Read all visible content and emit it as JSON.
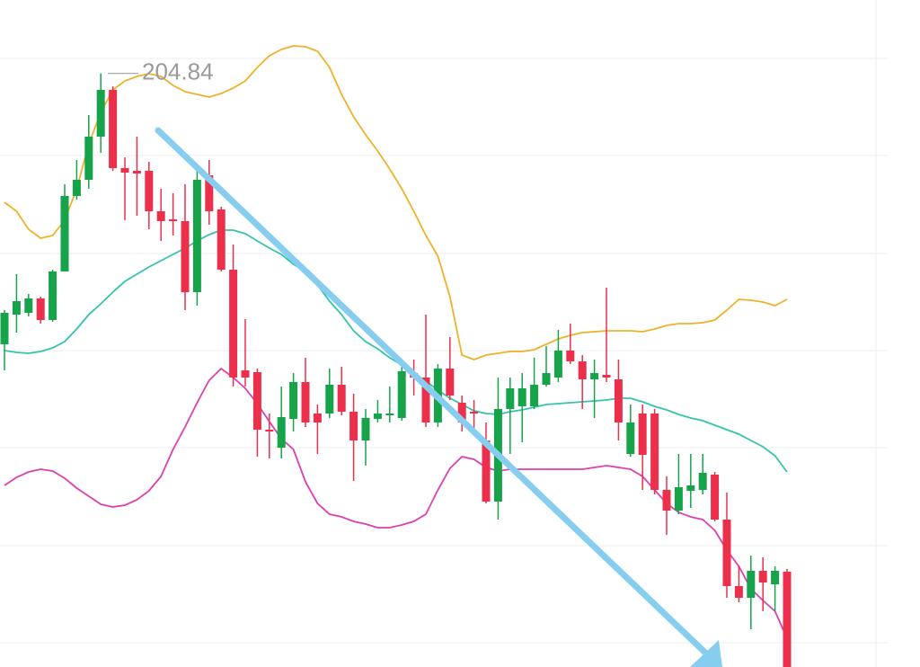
{
  "chart_data": {
    "type": "candlestick",
    "ylim": [
      138.8,
      213
    ],
    "up_color": "#16a34a",
    "down_color": "#ec2f4b",
    "open": [
      174.7,
      178.0,
      178.2,
      179.8,
      177.4,
      182.8,
      191.2,
      193.0,
      197.8,
      203.0,
      194.3,
      194.0,
      194.0,
      189.5,
      188.6,
      188.4,
      180.5,
      193.5,
      189.7,
      183.0,
      171.8,
      171.6,
      165.2,
      163.2,
      166.4,
      170.5,
      167.0,
      167.0,
      170.2,
      167.2,
      164.0,
      166.4,
      166.8,
      166.5,
      171.5,
      171.0,
      166.0,
      172.0,
      168.2,
      167.2,
      164.0,
      157.2,
      167.5,
      167.8,
      167.8,
      170.2,
      171.0,
      174.0,
      172.8,
      170.8,
      171.3,
      170.8,
      162.5,
      167.0,
      167.0,
      158.5,
      156.2,
      158.4,
      158.5,
      160.2,
      155.2,
      147.8,
      146.5,
      149.5,
      148.0,
      149.4
    ],
    "high": [
      178.5,
      182.5,
      180.3,
      180.0,
      183.0,
      192.5,
      195.2,
      200.2,
      204.84,
      203.4,
      195.5,
      197.8,
      195.0,
      192.0,
      191.5,
      192.5,
      194.0,
      195.2,
      190.0,
      185.8,
      177.5,
      172.0,
      167.0,
      170.0,
      171.5,
      173.2,
      168.0,
      172.0,
      172.2,
      169.2,
      167.5,
      168.5,
      170.0,
      173.0,
      173.0,
      178.0,
      172.5,
      175.5,
      169.0,
      168.5,
      166.0,
      171.0,
      171.0,
      171.5,
      173.2,
      174.5,
      176.3,
      177.0,
      173.5,
      173.0,
      181.0,
      173.0,
      168.0,
      168.0,
      167.5,
      160.0,
      162.5,
      162.5,
      162.5,
      160.5,
      158.2,
      150.0,
      151.2,
      151.0,
      150.0,
      149.7
    ],
    "low": [
      171.8,
      176.0,
      177.8,
      177.0,
      177.2,
      182.8,
      190.8,
      192.0,
      196.0,
      194.0,
      188.5,
      189.0,
      187.5,
      186.2,
      186.8,
      178.5,
      179.0,
      188.0,
      182.8,
      170.0,
      170.0,
      162.2,
      162.0,
      162.0,
      165.0,
      165.5,
      162.5,
      166.5,
      166.8,
      159.5,
      161.2,
      166.0,
      166.0,
      166.2,
      169.0,
      165.5,
      165.5,
      168.5,
      165.0,
      165.0,
      157.0,
      155.2,
      162.5,
      163.8,
      167.5,
      170.0,
      170.5,
      172.5,
      167.5,
      166.5,
      170.5,
      164.0,
      162.2,
      158.5,
      158.0,
      153.5,
      155.8,
      156.5,
      158.0,
      155.0,
      146.5,
      146.0,
      143.0,
      145.0,
      145.0,
      138.8
    ],
    "close": [
      178.2,
      179.5,
      179.8,
      177.4,
      182.8,
      191.2,
      193.0,
      197.8,
      203.0,
      194.3,
      193.8,
      193.7,
      189.5,
      188.4,
      188.4,
      180.5,
      193.0,
      189.5,
      183.0,
      171.0,
      171.0,
      165.2,
      165.0,
      166.6,
      170.5,
      166.0,
      166.0,
      170.2,
      167.2,
      164.0,
      166.5,
      167.0,
      167.0,
      171.7,
      171.0,
      166.0,
      172.0,
      169.0,
      166.0,
      167.0,
      157.2,
      167.5,
      169.8,
      169.8,
      170.2,
      171.5,
      174.0,
      172.8,
      170.8,
      171.5,
      171.0,
      166.0,
      166.0,
      162.4,
      158.5,
      156.2,
      158.8,
      159.0,
      160.4,
      155.2,
      147.8,
      146.5,
      149.5,
      148.2,
      149.5,
      138.8
    ],
    "lines": [
      {
        "color": "#efb12a",
        "values": [
          190.5,
          189.5,
          187.5,
          186.5,
          186.8,
          188.5,
          192.0,
          197.0,
          200.5,
          203.0,
          204.0,
          204.5,
          204.8,
          204.5,
          203.5,
          202.8,
          202.5,
          202.2,
          202.6,
          203.2,
          204.0,
          205.5,
          206.8,
          207.5,
          207.9,
          207.8,
          207.3,
          205.5,
          202.5,
          200.0,
          198.0,
          196.2,
          194.2,
          192.0,
          189.5,
          186.8,
          184.5,
          180.0,
          173.5,
          173.0,
          173.5,
          173.7,
          173.9,
          173.9,
          174.1,
          174.7,
          175.3,
          175.7,
          176.0,
          176.1,
          176.2,
          176.2,
          176.2,
          176.1,
          176.4,
          176.8,
          177.0,
          177.0,
          177.1,
          177.4,
          178.5,
          179.7,
          179.6,
          179.4,
          179.0,
          179.7
        ]
      },
      {
        "color": "#35c3ad",
        "values": [
          174.0,
          173.8,
          173.7,
          173.9,
          174.3,
          175.0,
          176.4,
          178.0,
          179.2,
          180.5,
          181.7,
          182.5,
          183.3,
          184.0,
          184.7,
          185.4,
          186.2,
          186.9,
          187.4,
          187.4,
          187.0,
          186.2,
          185.4,
          184.7,
          183.6,
          182.8,
          181.3,
          179.5,
          178.0,
          176.2,
          175.0,
          174.2,
          173.2,
          172.4,
          171.5,
          170.6,
          169.6,
          168.7,
          168.0,
          167.3,
          167.0,
          166.9,
          167.2,
          167.4,
          167.7,
          168.0,
          168.1,
          168.2,
          168.3,
          168.4,
          168.5,
          168.7,
          168.7,
          168.3,
          167.8,
          167.4,
          166.9,
          166.5,
          166.2,
          165.7,
          165.2,
          164.7,
          164.0,
          163.3,
          162.3,
          160.5
        ]
      },
      {
        "color": "#dd3fae",
        "values": [
          159.0,
          159.9,
          160.5,
          160.8,
          160.6,
          159.8,
          158.7,
          157.8,
          156.9,
          156.6,
          156.8,
          157.4,
          158.4,
          160.0,
          163.0,
          165.5,
          168.2,
          170.7,
          172.0,
          171.0,
          169.8,
          168.1,
          166.1,
          164.2,
          163.0,
          159.4,
          157.0,
          155.8,
          155.5,
          155.0,
          154.7,
          154.3,
          154.3,
          154.6,
          155.0,
          155.8,
          158.5,
          160.9,
          162.2,
          161.9,
          161.0,
          160.6,
          160.8,
          160.8,
          160.8,
          160.8,
          160.8,
          160.8,
          160.8,
          161.0,
          161.2,
          161.0,
          160.8,
          160.0,
          158.5,
          157.0,
          156.0,
          155.5,
          155.2,
          154.0,
          151.8,
          150.0,
          147.5,
          146.2,
          145.0,
          142.0
        ]
      }
    ],
    "annotations": [
      {
        "label": "204.84",
        "value": 204.84
      }
    ]
  }
}
